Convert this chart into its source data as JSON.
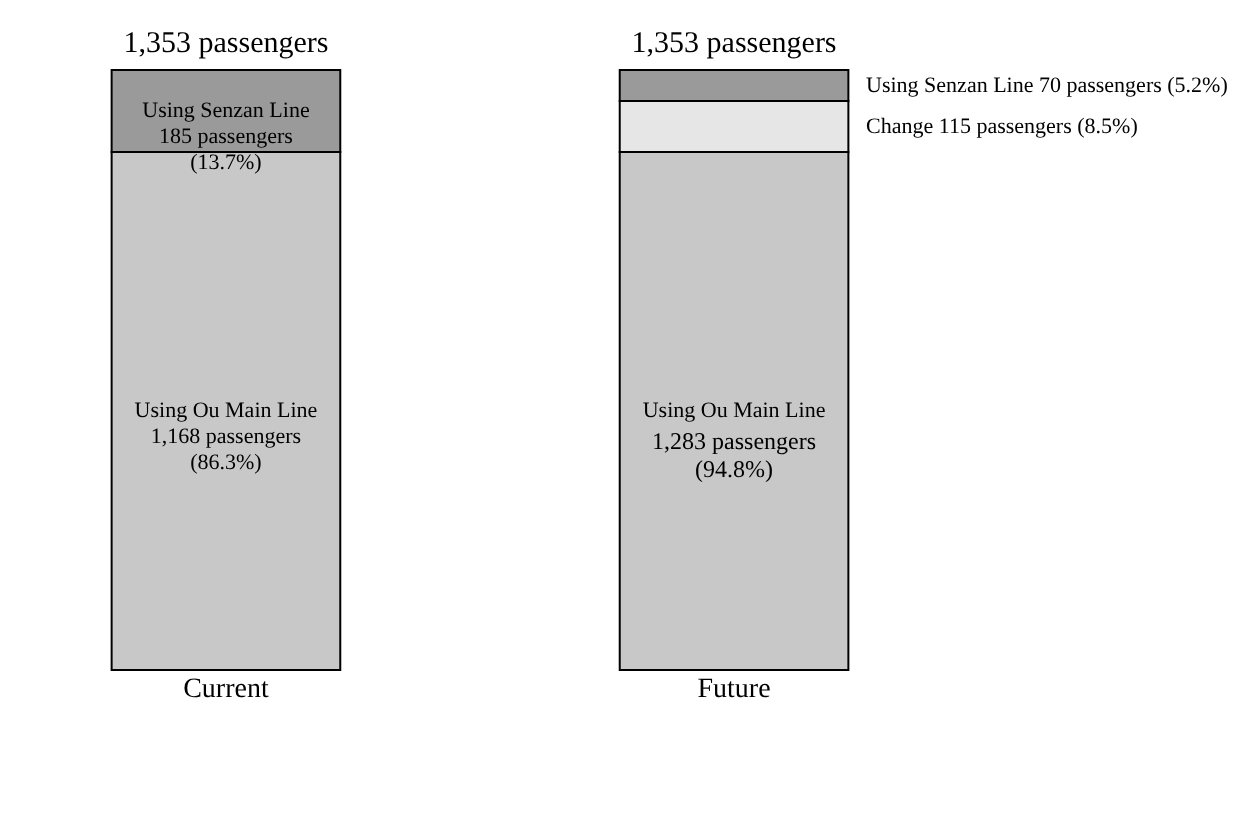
{
  "chart_data": {
    "type": "bar",
    "stacked": true,
    "categories": [
      "Current",
      "Future"
    ],
    "series": [
      {
        "name": "Using Ou Main Line",
        "color": "#c8c8c8",
        "values": [
          1168,
          1168
        ],
        "value_labels": [
          "1,168 passengers\n(86.3%)",
          null
        ]
      },
      {
        "name": "Change",
        "color": "#e6e6e6",
        "values": [
          null,
          115
        ],
        "value_labels": [
          null,
          "115 passengers (8.5%)"
        ]
      },
      {
        "name": "Using Senzan Line",
        "color": "#9a9a9a",
        "values": [
          185,
          70
        ],
        "value_labels": [
          "185 passengers\n(13.7%)",
          "70 passengers (5.2%)"
        ]
      }
    ],
    "annotations": [
      "1,283 passengers\n(94.8%)"
    ],
    "totals": [
      "1,353 passengers",
      "1,353 passengers"
    ],
    "grid": false
  }
}
